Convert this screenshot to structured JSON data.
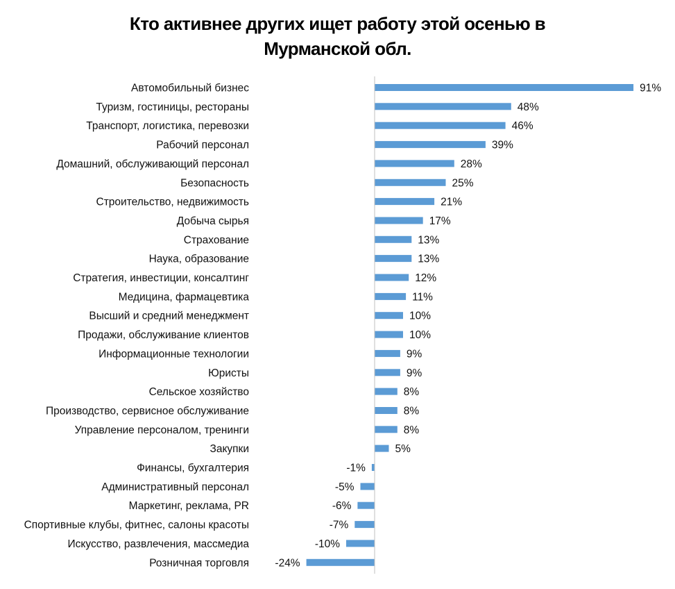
{
  "chart_data": {
    "type": "bar",
    "orientation": "horizontal",
    "title_lines": [
      "Кто активнее других ищет работу этой осенью в",
      "Мурманской обл."
    ],
    "categories": [
      "Автомобильный бизнес",
      "Туризм, гостиницы, рестораны",
      "Транспорт, логистика, перевозки",
      "Рабочий персонал",
      "Домашний, обслуживающий персонал",
      "Безопасность",
      "Строительство, недвижимость",
      "Добыча сырья",
      "Страхование",
      "Наука, образование",
      "Стратегия, инвестиции, консалтинг",
      "Медицина, фармацевтика",
      "Высший и средний менеджмент",
      "Продажи, обслуживание клиентов",
      "Информационные технологии",
      "Юристы",
      "Сельское хозяйство",
      "Производство, сервисное обслуживание",
      "Управление персоналом, тренинги",
      "Закупки",
      "Финансы, бухгалтерия",
      "Административный персонал",
      "Маркетинг, реклама, PR",
      "Спортивные клубы, фитнес, салоны красоты",
      "Искусство, развлечения, массмедиа",
      "Розничная торговля"
    ],
    "values": [
      91,
      48,
      46,
      39,
      28,
      25,
      21,
      17,
      13,
      13,
      12,
      11,
      10,
      10,
      9,
      9,
      8,
      8,
      8,
      5,
      -1,
      -5,
      -6,
      -7,
      -10,
      -24
    ],
    "value_labels": [
      "91%",
      "48%",
      "46%",
      "39%",
      "28%",
      "25%",
      "21%",
      "17%",
      "13%",
      "13%",
      "12%",
      "11%",
      "10%",
      "10%",
      "9%",
      "9%",
      "8%",
      "8%",
      "8%",
      "5%",
      "-1%",
      "-5%",
      "-6%",
      "-7%",
      "-10%",
      "-24%"
    ],
    "bar_color": "#5b9bd5",
    "axis_color": "#bfbfbf",
    "grid": false,
    "legend": "none"
  }
}
